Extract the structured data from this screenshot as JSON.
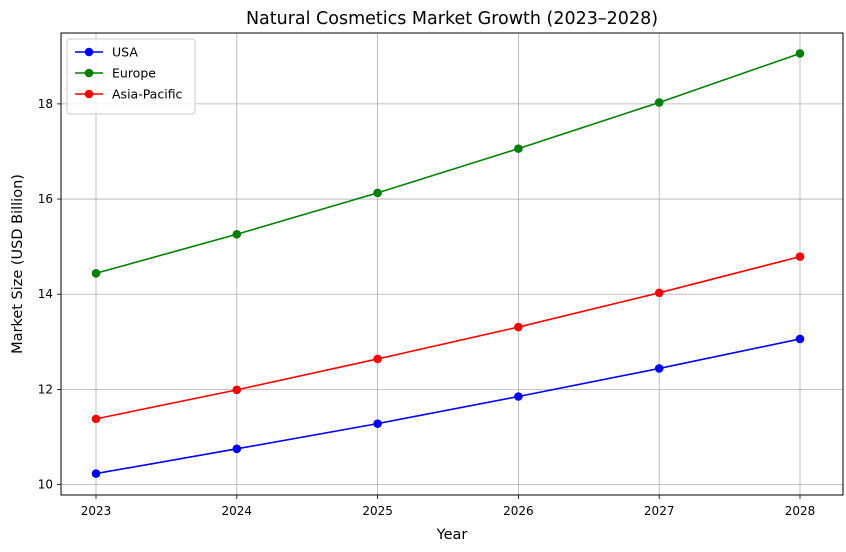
{
  "chart_data": {
    "type": "line",
    "title": "Natural Cosmetics Market Growth (2023–2028)",
    "xlabel": "Year",
    "ylabel": "Market Size (USD Billion)",
    "x": [
      2023,
      2024,
      2025,
      2026,
      2027,
      2028
    ],
    "x_tick_labels": [
      "2023",
      "2024",
      "2025",
      "2026",
      "2027",
      "2028"
    ],
    "ylim": [
      9.78,
      19.49
    ],
    "y_ticks": [
      10,
      12,
      14,
      16,
      18
    ],
    "y_tick_labels": [
      "10",
      "12",
      "14",
      "16",
      "18"
    ],
    "grid": true,
    "legend_position": "top-left",
    "series": [
      {
        "name": "USA",
        "color": "#0000ff",
        "marker": "circle",
        "values": [
          10.23,
          10.75,
          11.28,
          11.85,
          12.44,
          13.06
        ]
      },
      {
        "name": "Europe",
        "color": "#008000",
        "marker": "circle",
        "values": [
          14.44,
          15.26,
          16.13,
          17.06,
          18.03,
          19.06
        ]
      },
      {
        "name": "Asia-Pacific",
        "color": "#ff0000",
        "marker": "circle",
        "values": [
          11.38,
          11.99,
          12.64,
          13.31,
          14.03,
          14.79
        ]
      }
    ]
  }
}
